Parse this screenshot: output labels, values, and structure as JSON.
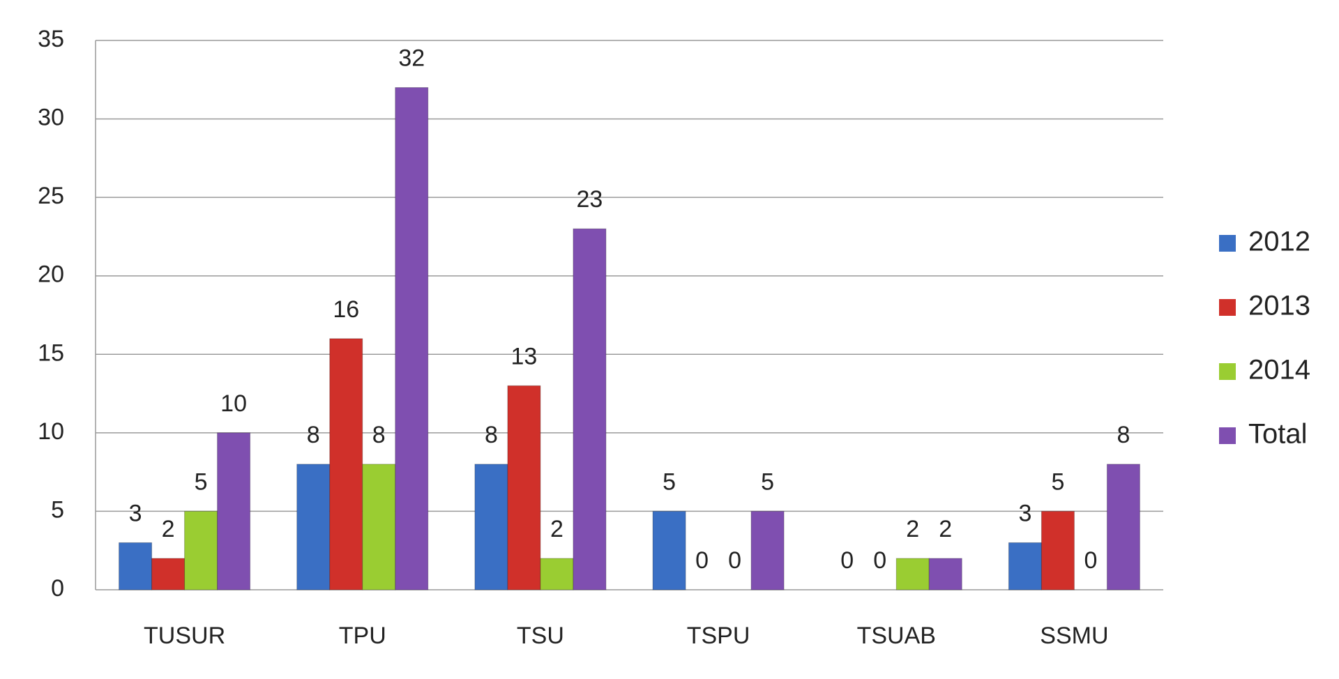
{
  "chart_data": {
    "type": "bar",
    "categories": [
      "TUSUR",
      "TPU",
      "TSU",
      "TSPU",
      "TSUAB",
      "SSMU"
    ],
    "series": [
      {
        "name": "2012",
        "color": "#3a6fc4",
        "values": [
          3,
          8,
          8,
          5,
          0,
          3
        ]
      },
      {
        "name": "2013",
        "color": "#d0302a",
        "values": [
          2,
          16,
          13,
          0,
          0,
          5
        ]
      },
      {
        "name": "2014",
        "color": "#9acd32",
        "values": [
          5,
          8,
          2,
          0,
          2,
          0
        ]
      },
      {
        "name": "Total",
        "color": "#7f4fb0",
        "values": [
          10,
          32,
          23,
          5,
          2,
          8
        ]
      }
    ],
    "ylim": [
      0,
      35
    ],
    "yticks": [
      0,
      5,
      10,
      15,
      20,
      25,
      30,
      35
    ],
    "grid": true,
    "legend": "right"
  }
}
